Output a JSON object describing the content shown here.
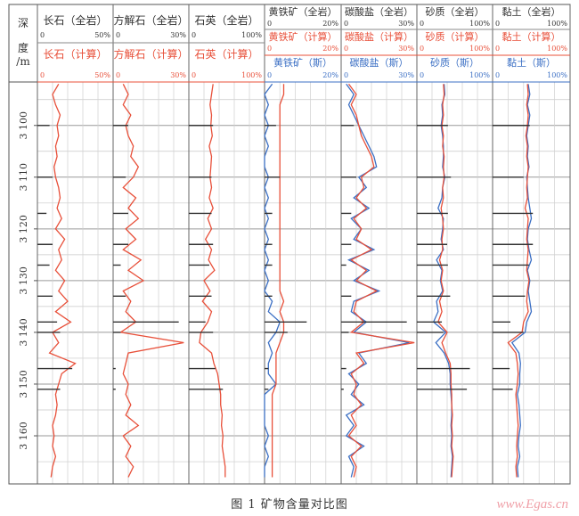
{
  "caption": "图 1   矿物含量对比图",
  "watermark": "www.Egas.cn",
  "chart_data": {
    "type": "line",
    "title": "矿物含量对比图",
    "figure_label": "图 1",
    "ylabel": [
      "深",
      "度",
      "/m"
    ],
    "ylim": [
      3091.6,
      3169.3
    ],
    "y_ticks": [
      3100,
      3110,
      3120,
      3130,
      3140,
      3150,
      3160
    ],
    "y_tick_labels": [
      "3 100",
      "3 110",
      "3 120",
      "3 130",
      "3 140",
      "3 150",
      "3 160"
    ],
    "grid": true,
    "colors": {
      "whole_rock": "#333333",
      "calc": "#e8503a",
      "sonic": "#3b6fc4",
      "grid": "#bfbfbf"
    },
    "depth": [
      3092,
      3094,
      3096,
      3098,
      3100,
      3102,
      3104,
      3106,
      3108,
      3110,
      3112,
      3114,
      3116,
      3118,
      3120,
      3122,
      3124,
      3126,
      3128,
      3130,
      3132,
      3134,
      3136,
      3138,
      3140,
      3142,
      3144,
      3146,
      3148,
      3150,
      3152,
      3154,
      3156,
      3158,
      3160,
      3162,
      3164,
      3166,
      3168
    ],
    "core_depths": [
      3100,
      3110,
      3117,
      3123,
      3127,
      3133,
      3138,
      3140,
      3147,
      3151
    ],
    "tracks": [
      {
        "whole": {
          "label": "长石（全岩）",
          "min": "0",
          "max": "50%"
        },
        "calc": {
          "label": "长石（计算）",
          "min": "0",
          "max": "50%",
          "values": [
            14,
            10,
            12,
            15,
            13,
            14,
            12,
            13,
            11,
            12,
            14,
            15,
            13,
            16,
            12,
            18,
            14,
            16,
            12,
            18,
            14,
            20,
            12,
            22,
            10,
            14,
            8,
            25,
            16,
            14,
            12,
            13,
            12,
            10,
            11,
            10,
            12,
            10,
            9
          ]
        },
        "range": 50,
        "core": [
          8,
          10,
          6,
          10,
          8,
          10,
          13,
          15,
          23,
          15
        ]
      },
      {
        "whole": {
          "label": "方解石（全岩）",
          "min": "0",
          "max": "30%"
        },
        "calc": {
          "label": "方解石（计算）",
          "min": "0",
          "max": "30%",
          "values": [
            4,
            6,
            4,
            7,
            5,
            6,
            8,
            7,
            10,
            8,
            4,
            9,
            6,
            10,
            5,
            9,
            4,
            11,
            6,
            12,
            4,
            7,
            5,
            9,
            3,
            28,
            6,
            5,
            4,
            6,
            5,
            7,
            5,
            10,
            4,
            7,
            5,
            8,
            6
          ]
        },
        "range": 30,
        "core": [
          6,
          5,
          6,
          6,
          3,
          5,
          26,
          3,
          1,
          1
        ]
      },
      {
        "whole": {
          "label": "石英（全岩）",
          "min": "0",
          "max": "100%"
        },
        "calc": {
          "label": "石英（计算）",
          "min": "0",
          "max": "100%",
          "values": [
            32,
            30,
            28,
            30,
            29,
            31,
            27,
            30,
            29,
            28,
            30,
            27,
            32,
            25,
            30,
            22,
            30,
            26,
            34,
            20,
            28,
            18,
            30,
            25,
            16,
            14,
            30,
            33,
            38,
            40,
            42,
            42,
            44,
            43,
            45,
            44,
            46,
            48,
            48
          ]
        },
        "range": 100,
        "core": [
          32,
          30,
          30,
          32,
          27,
          30,
          22,
          32,
          35,
          45
        ]
      },
      {
        "whole": {
          "label": "黄铁矿（全岩）",
          "min": "0",
          "max": "20%"
        },
        "calc": {
          "label": "黄铁矿（计算）",
          "min": "0",
          "max": "20%",
          "values": [
            5,
            5,
            4,
            4,
            4,
            4,
            4,
            4,
            4,
            4,
            4,
            4,
            4,
            4,
            4,
            4,
            4,
            4,
            4,
            4,
            4,
            5,
            4,
            5,
            5,
            4,
            3,
            3,
            3,
            3,
            2,
            2,
            2,
            2,
            2,
            2,
            2,
            2,
            2
          ]
        },
        "sonic": {
          "label": "黄铁矿（斯）",
          "min": "0",
          "max": "20%",
          "values": [
            2,
            0,
            1,
            0,
            1,
            0,
            1,
            0,
            0,
            1,
            0,
            1,
            0,
            1,
            0,
            1,
            0,
            1,
            0,
            1,
            0,
            2,
            1,
            4,
            3,
            1,
            2,
            1,
            1,
            3,
            0,
            0,
            0,
            0,
            1,
            0,
            1,
            0,
            0
          ]
        },
        "range": 20,
        "core": [
          3,
          4,
          2,
          2,
          2,
          2,
          11,
          6,
          1,
          1
        ]
      },
      {
        "whole": {
          "label": "碳酸盐（全岩）",
          "min": "0",
          "max": "30%"
        },
        "calc": {
          "label": "碳酸盐（计算）",
          "min": "0",
          "max": "30%",
          "values": [
            3,
            6,
            4,
            6,
            7,
            8,
            10,
            12,
            13,
            8,
            9,
            6,
            10,
            5,
            8,
            6,
            12,
            4,
            10,
            6,
            14,
            6,
            5,
            9,
            4,
            29,
            6,
            9,
            4,
            6,
            5,
            8,
            4,
            6,
            3,
            8,
            4,
            6,
            5
          ]
        },
        "sonic": {
          "label": "碳酸盐（斯）",
          "min": "0",
          "max": "30%",
          "values": [
            2,
            5,
            3,
            5,
            7,
            9,
            11,
            13,
            14,
            7,
            10,
            5,
            11,
            4,
            8,
            5,
            13,
            3,
            11,
            5,
            15,
            5,
            4,
            10,
            5,
            27,
            7,
            10,
            3,
            7,
            4,
            9,
            2,
            5,
            2,
            9,
            3,
            5,
            4
          ]
        },
        "range": 30,
        "core": [
          5,
          6,
          4,
          4,
          2,
          4,
          26,
          3,
          2,
          1
        ]
      },
      {
        "whole": {
          "label": "砂质（全岩）",
          "min": "0",
          "max": "100%"
        },
        "calc": {
          "label": "砂质（计算）",
          "min": "0",
          "max": "100%",
          "values": [
            35,
            36,
            34,
            35,
            33,
            35,
            34,
            36,
            35,
            36,
            34,
            35,
            32,
            34,
            35,
            33,
            34,
            30,
            34,
            32,
            35,
            30,
            33,
            28,
            40,
            33,
            38,
            44,
            45,
            45,
            46,
            46,
            47,
            46,
            47,
            46,
            48,
            47,
            46
          ]
        },
        "sonic": {
          "label": "砂质（斯）",
          "min": "0",
          "max": "100%",
          "values": [
            36,
            37,
            33,
            34,
            32,
            34,
            35,
            35,
            34,
            37,
            34,
            33,
            28,
            35,
            34,
            32,
            35,
            26,
            33,
            31,
            34,
            26,
            28,
            22,
            38,
            25,
            36,
            42,
            44,
            44,
            45,
            46,
            46,
            45,
            46,
            45,
            47,
            46,
            45
          ]
        },
        "range": 100,
        "core": [
          41,
          45,
          41,
          40,
          41,
          44,
          33,
          35,
          70,
          66
        ]
      },
      {
        "whole": {
          "label": "黏土（全岩）",
          "min": "0",
          "max": "100%"
        },
        "calc": {
          "label": "黏土（计算）",
          "min": "0",
          "max": "100%",
          "values": [
            45,
            46,
            44,
            46,
            45,
            43,
            45,
            44,
            46,
            45,
            44,
            45,
            42,
            46,
            45,
            44,
            46,
            45,
            44,
            47,
            45,
            44,
            46,
            40,
            38,
            20,
            30,
            32,
            33,
            32,
            30,
            31,
            32,
            33,
            32,
            31,
            32,
            30,
            31
          ]
        },
        "sonic": {
          "label": "黏土（斯）",
          "min": "0",
          "max": "100%",
          "values": [
            46,
            48,
            45,
            48,
            46,
            44,
            46,
            45,
            47,
            44,
            45,
            46,
            48,
            50,
            46,
            45,
            47,
            50,
            45,
            48,
            46,
            48,
            50,
            44,
            42,
            25,
            34,
            36,
            35,
            35,
            32,
            34,
            35,
            36,
            34,
            33,
            35,
            32,
            33
          ]
        },
        "range": 100,
        "core": [
          48,
          40,
          52,
          52,
          47,
          42,
          23,
          40,
          22,
          26
        ]
      }
    ]
  }
}
